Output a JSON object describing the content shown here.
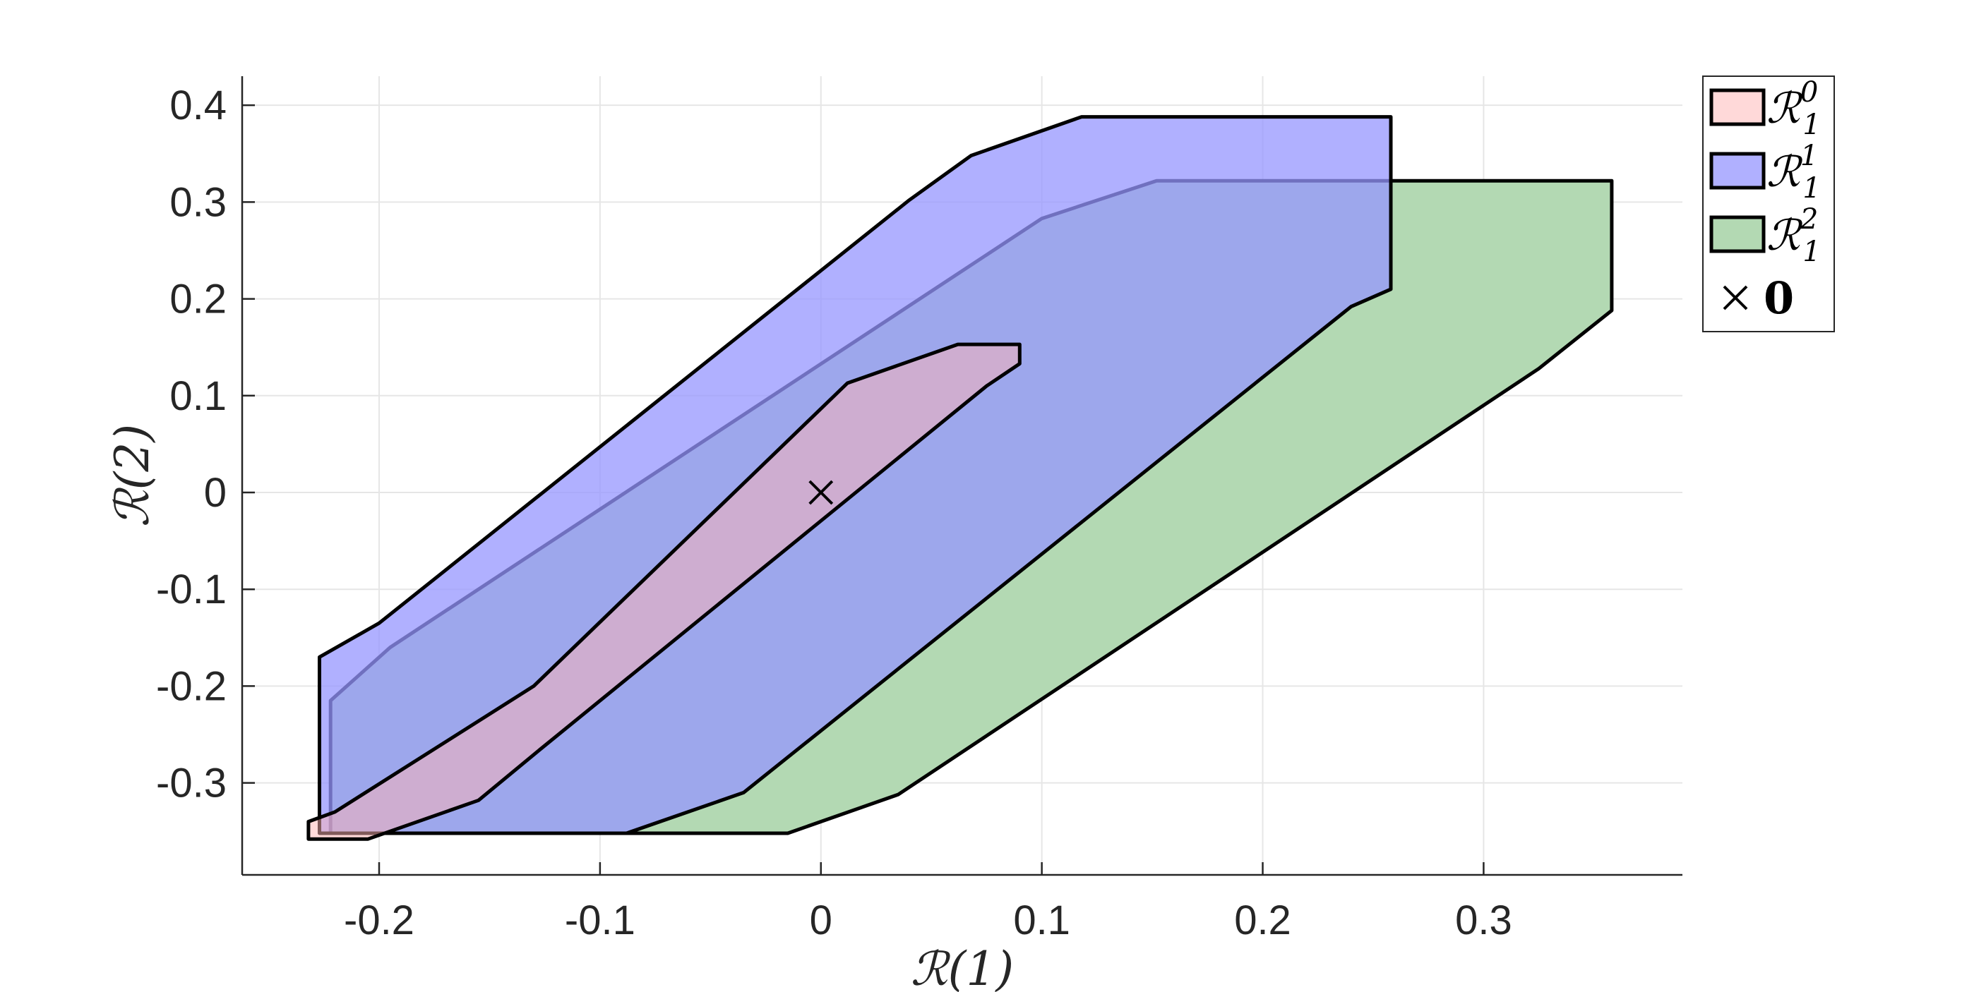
{
  "chart_data": {
    "type": "area",
    "title": "",
    "xlabel": "ℛ(1)",
    "ylabel": "ℛ(2)",
    "xlim": [
      -0.262,
      0.39
    ],
    "ylim": [
      -0.395,
      0.43
    ],
    "xticks": [
      -0.2,
      -0.1,
      0,
      0.1,
      0.2,
      0.3
    ],
    "xtick_labels": [
      "-0.2",
      "-0.1",
      "0",
      "0.1",
      "0.2",
      "0.3"
    ],
    "yticks": [
      -0.3,
      -0.2,
      -0.1,
      0,
      0.1,
      0.2,
      0.3,
      0.4
    ],
    "ytick_labels": [
      "-0.3",
      "-0.2",
      "-0.1",
      "0",
      "0.1",
      "0.2",
      "0.3",
      "0.4"
    ],
    "grid": true,
    "legend_position": "outside-top-right",
    "series": [
      {
        "name": "ℛ",
        "sub": "1",
        "sup": "2",
        "color": "#b3d9b3",
        "polygon": [
          [
            -0.222,
            -0.215
          ],
          [
            -0.195,
            -0.16
          ],
          [
            0.1,
            0.283
          ],
          [
            0.152,
            0.322
          ],
          [
            0.358,
            0.322
          ],
          [
            0.358,
            0.188
          ],
          [
            0.325,
            0.128
          ],
          [
            0.035,
            -0.312
          ],
          [
            -0.015,
            -0.352
          ],
          [
            -0.222,
            -0.352
          ]
        ]
      },
      {
        "name": "ℛ",
        "sub": "1",
        "sup": "1",
        "color": "#9696ff",
        "alpha": 0.75,
        "polygon": [
          [
            -0.227,
            -0.17
          ],
          [
            -0.2,
            -0.135
          ],
          [
            0.04,
            0.302
          ],
          [
            0.068,
            0.348
          ],
          [
            0.118,
            0.388
          ],
          [
            0.258,
            0.388
          ],
          [
            0.258,
            0.21
          ],
          [
            0.24,
            0.192
          ],
          [
            -0.035,
            -0.31
          ],
          [
            -0.088,
            -0.352
          ],
          [
            -0.227,
            -0.352
          ]
        ]
      },
      {
        "name": "ℛ",
        "sub": "1",
        "sup": "0",
        "color": "#ffb3b3",
        "alpha": 0.5,
        "polygon": [
          [
            -0.232,
            -0.34
          ],
          [
            -0.22,
            -0.33
          ],
          [
            -0.13,
            -0.2
          ],
          [
            0.012,
            0.113
          ],
          [
            0.062,
            0.153
          ],
          [
            0.09,
            0.153
          ],
          [
            0.09,
            0.133
          ],
          [
            0.075,
            0.11
          ],
          [
            -0.128,
            -0.267
          ],
          [
            -0.155,
            -0.318
          ],
          [
            -0.205,
            -0.358
          ],
          [
            -0.232,
            -0.358
          ]
        ]
      }
    ],
    "markers": [
      {
        "label": "0",
        "symbol": "×",
        "x": 0,
        "y": 0,
        "color": "#000000"
      }
    ]
  }
}
